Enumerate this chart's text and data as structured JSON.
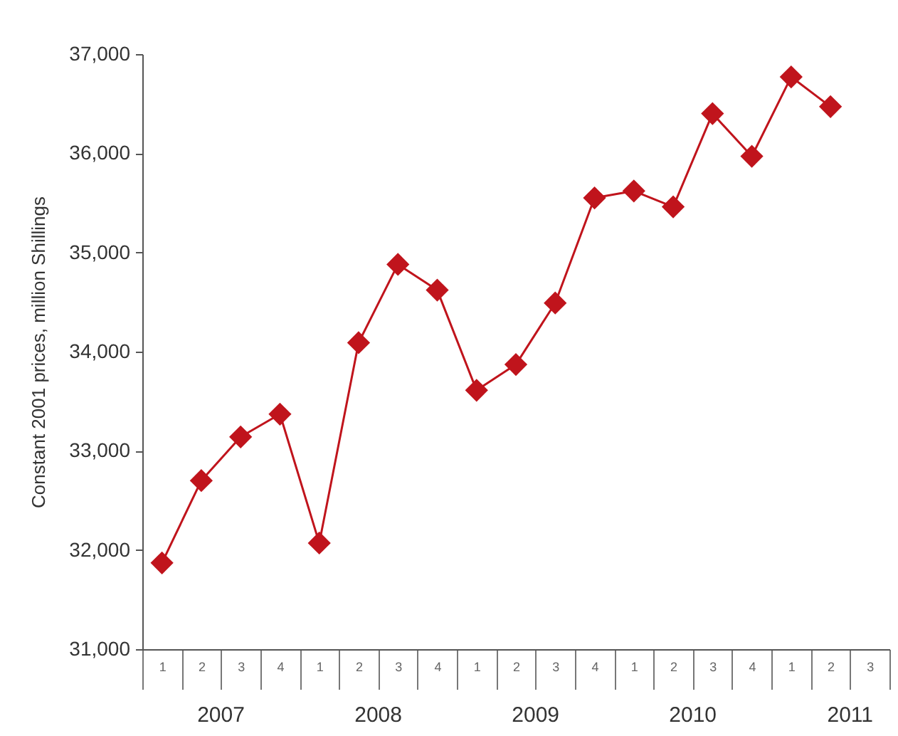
{
  "chart_data": {
    "type": "line",
    "ylabel": "Constant 2001 prices, million Shillings",
    "categories": [
      "1",
      "2",
      "3",
      "4",
      "1",
      "2",
      "3",
      "4",
      "1",
      "2",
      "3",
      "4",
      "1",
      "2",
      "3",
      "4",
      "1",
      "2",
      "3"
    ],
    "series": [
      {
        "color": "#c0141c",
        "values": [
          31870,
          32700,
          33140,
          33370,
          32070,
          34090,
          34880,
          34620,
          33610,
          33870,
          34490,
          35550,
          35620,
          35460,
          36400,
          35970,
          36770,
          36470,
          null
        ]
      }
    ],
    "annotations": [
      "2007",
      "2008",
      "2009",
      "2010",
      "2011"
    ],
    "ylim": [
      31000,
      37000
    ],
    "yticks": [
      {
        "value": 31000,
        "label": "31,000"
      },
      {
        "value": 32000,
        "label": "32,000"
      },
      {
        "value": 33000,
        "label": "33,000"
      },
      {
        "value": 34000,
        "label": "34,000"
      },
      {
        "value": 35000,
        "label": "35,000"
      },
      {
        "value": 36000,
        "label": "36,000"
      },
      {
        "value": 37000,
        "label": "37,000"
      }
    ],
    "marker": "diamond",
    "grid": false
  }
}
